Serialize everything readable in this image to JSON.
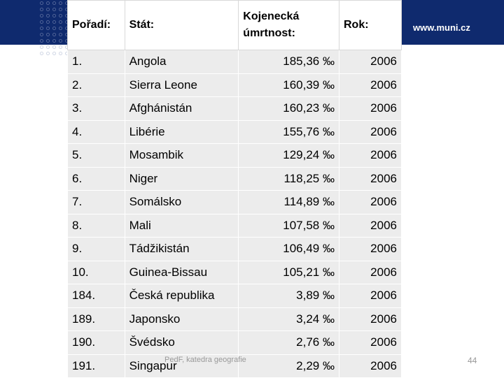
{
  "header": {
    "site": "www.muni.cz"
  },
  "table": {
    "columns": [
      "Pořadí:",
      "Stát:",
      "Kojenecká úmrtnost:",
      "Rok:"
    ],
    "rows": [
      [
        "1.",
        "Angola",
        "185,36 ‰",
        "2006"
      ],
      [
        "2.",
        "Sierra Leone",
        "160,39 ‰",
        "2006"
      ],
      [
        "3.",
        "Afghánistán",
        "160,23 ‰",
        "2006"
      ],
      [
        "4.",
        "Libérie",
        "155,76 ‰",
        "2006"
      ],
      [
        "5.",
        "Mosambik",
        "129,24 ‰",
        "2006"
      ],
      [
        "6.",
        "Niger",
        "118,25 ‰",
        "2006"
      ],
      [
        "7.",
        "Somálsko",
        "114,89 ‰",
        "2006"
      ],
      [
        "8.",
        "Mali",
        "107,58 ‰",
        "2006"
      ],
      [
        "9.",
        "Tádžikistán",
        "106,49 ‰",
        "2006"
      ],
      [
        "10.",
        "Guinea-Bissau",
        "105,21 ‰",
        "2006"
      ],
      [
        "184.",
        "Česká republika",
        "3,89 ‰",
        "2006"
      ],
      [
        "189.",
        "Japonsko",
        "3,24 ‰",
        "2006"
      ],
      [
        "190.",
        "Švédsko",
        "2,76 ‰",
        "2006"
      ],
      [
        "191.",
        "Singapur",
        "2,29 ‰",
        "2006"
      ]
    ]
  },
  "footer": {
    "text": "PedF, katedra geografie",
    "page": "44"
  }
}
